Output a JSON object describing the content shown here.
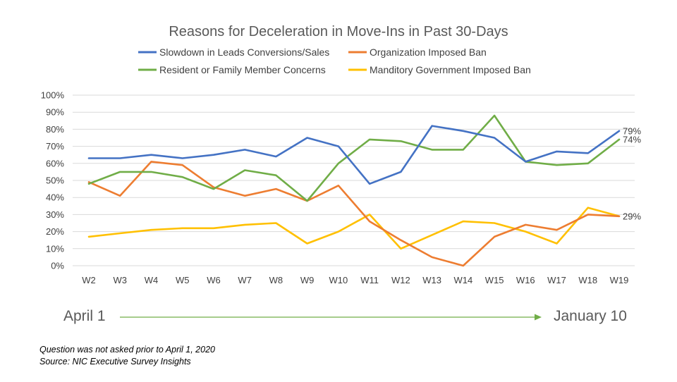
{
  "chart_data": {
    "type": "line",
    "title": "Reasons for Deceleration in Move-Ins in Past 30-Days",
    "categories": [
      "W2",
      "W3",
      "W4",
      "W5",
      "W6",
      "W7",
      "W8",
      "W9",
      "W10",
      "W11",
      "W12",
      "W13",
      "W14",
      "W15",
      "W16",
      "W17",
      "W18",
      "W19"
    ],
    "ylim": [
      0,
      100
    ],
    "yticks": [
      "0%",
      "10%",
      "20%",
      "30%",
      "40%",
      "50%",
      "60%",
      "70%",
      "80%",
      "90%",
      "100%"
    ],
    "grid": true,
    "legend_position": "top",
    "series": [
      {
        "name": "Slowdown in Leads Conversions/Sales",
        "color": "#4472C4",
        "values": [
          63,
          63,
          65,
          63,
          65,
          68,
          64,
          75,
          70,
          48,
          55,
          82,
          79,
          75,
          61,
          67,
          66,
          79
        ],
        "end_label": "79%"
      },
      {
        "name": "Organization Imposed Ban",
        "color": "#ED7D31",
        "values": [
          49,
          41,
          61,
          59,
          46,
          41,
          45,
          38,
          47,
          26,
          15,
          5,
          0,
          17,
          24,
          21,
          30,
          29
        ],
        "end_label": ""
      },
      {
        "name": "Resident or Family Member Concerns",
        "color": "#70AD47",
        "values": [
          48,
          55,
          55,
          52,
          45,
          56,
          53,
          38,
          60,
          74,
          73,
          68,
          68,
          88,
          61,
          59,
          60,
          74
        ],
        "end_label": "74%"
      },
      {
        "name": "Manditory Government Imposed Ban",
        "color": "#FFC000",
        "values": [
          17,
          19,
          21,
          22,
          22,
          24,
          25,
          13,
          20,
          30,
          10,
          18,
          26,
          25,
          20,
          13,
          34,
          29
        ],
        "end_label": "29%"
      }
    ]
  },
  "timeline": {
    "start_label": "April 1",
    "end_label": "January 10",
    "arrow_color": "#70AD47"
  },
  "notes": {
    "line1": "Question was not asked prior to April 1, 2020",
    "line2": "Source: NIC Executive Survey Insights"
  }
}
